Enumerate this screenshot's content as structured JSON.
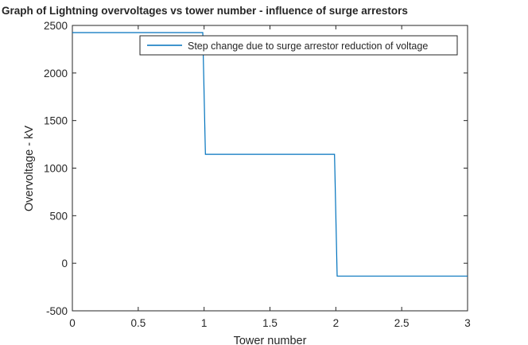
{
  "chart_data": {
    "type": "line",
    "title": "Graph of Lightning overvoltages vs tower number - influence of surge arrestors",
    "xlabel": "Tower number",
    "ylabel": "Overvoltage - kV",
    "xlim": [
      0,
      3
    ],
    "ylim": [
      -500,
      2500
    ],
    "xticks": [
      0,
      0.5,
      1,
      1.5,
      2,
      2.5,
      3
    ],
    "xtick_labels": [
      "0",
      "0.5",
      "1",
      "1.5",
      "2",
      "2.5",
      "3"
    ],
    "yticks": [
      -500,
      0,
      500,
      1000,
      1500,
      2000,
      2500
    ],
    "ytick_labels": [
      "-500",
      "0",
      "500",
      "1000",
      "1500",
      "2000",
      "2500"
    ],
    "grid": false,
    "legend_position": "top-right",
    "series": [
      {
        "name": "Step change due to surge arrestor reduction of voltage",
        "color": "#0072bd",
        "x": [
          0,
          0.99,
          1.01,
          1.99,
          2.01,
          3
        ],
        "y": [
          2425,
          2425,
          1145,
          1145,
          -135,
          -135
        ]
      }
    ]
  }
}
